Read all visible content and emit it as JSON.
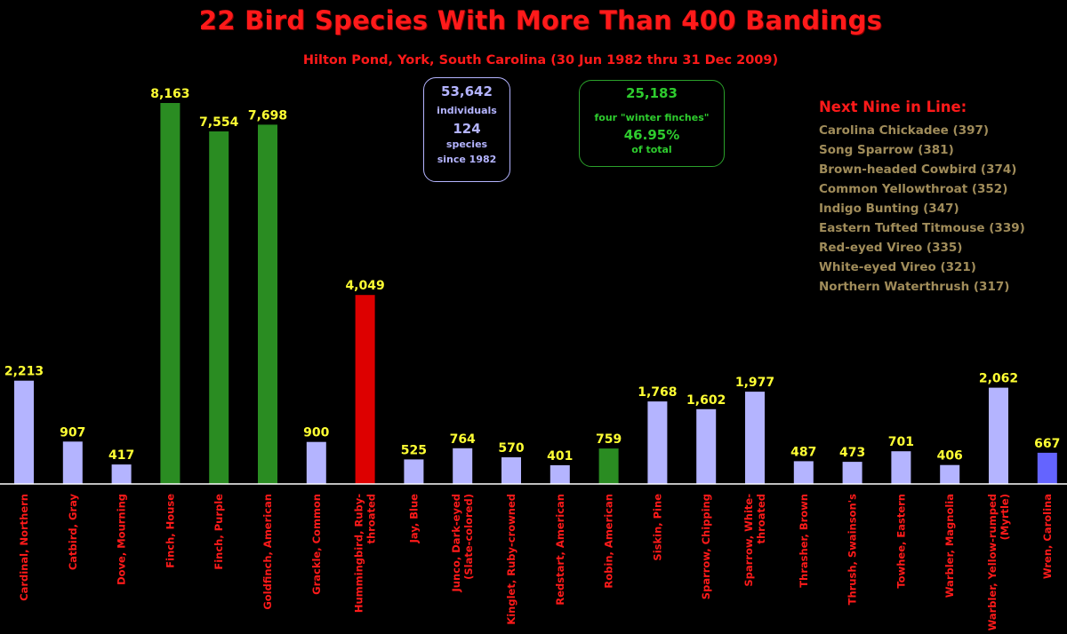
{
  "chart_data": {
    "type": "bar",
    "title": "22 Bird Species With More Than 400 Bandings",
    "subtitle": "Hilton Pond, York, South Carolina (30 Jun 1982 thru 31 Dec 2009)",
    "xlabel": "",
    "ylabel": "",
    "ylim": [
      0,
      8400
    ],
    "grid": false,
    "legend": "none",
    "categories": [
      "Cardinal, Northern",
      "Catbird, Gray",
      "Dove, Mourning",
      "Finch, House",
      "Finch, Purple",
      "Goldfinch, American",
      "Grackle, Common",
      "Hummingbird, Ruby-throated",
      "Jay, Blue",
      "Junco, Dark-eyed (Slate-colored)",
      "Kinglet, Ruby-crowned",
      "Redstart, American",
      "Robin, American",
      "Siskin, Pine",
      "Sparrow, Chipping",
      "Sparrow, White-throated",
      "Thrasher, Brown",
      "Thrush, Swainson's",
      "Towhee, Eastern",
      "Warbler, Magnolia",
      "Warbler, Yellow-rumped (Myrtle)",
      "Wren, Carolina"
    ],
    "tick_labels": [
      [
        "Cardinal, Northern"
      ],
      [
        "Catbird, Gray"
      ],
      [
        "Dove, Mourning"
      ],
      [
        "Finch, House"
      ],
      [
        "Finch, Purple"
      ],
      [
        "Goldfinch, American"
      ],
      [
        "Grackle, Common"
      ],
      [
        "Hummingbird, Ruby-",
        "throated"
      ],
      [
        "Jay, Blue"
      ],
      [
        "Junco, Dark-eyed",
        "(Slate-colored)"
      ],
      [
        "Kinglet, Ruby-crowned"
      ],
      [
        "Redstart, American"
      ],
      [
        "Robin, American"
      ],
      [
        "Siskin, Pine"
      ],
      [
        "Sparrow, Chipping"
      ],
      [
        "Sparrow, White-",
        "throated"
      ],
      [
        "Thrasher, Brown"
      ],
      [
        "Thrush, Swainson's"
      ],
      [
        "Towhee, Eastern"
      ],
      [
        "Warbler, Magnolia"
      ],
      [
        "Warbler, Yellow-rumped",
        "(Myrtle)"
      ],
      [
        "Wren, Carolina"
      ]
    ],
    "values": [
      2213,
      907,
      417,
      8163,
      7554,
      7698,
      900,
      4049,
      525,
      764,
      570,
      401,
      759,
      1768,
      1602,
      1977,
      487,
      473,
      701,
      406,
      2062,
      667
    ],
    "value_labels": [
      "2,213",
      "907",
      "417",
      "8,163",
      "7,554",
      "7,698",
      "900",
      "4,049",
      "525",
      "764",
      "570",
      "401",
      "759",
      "1,768",
      "1,602",
      "1,977",
      "487",
      "473",
      "701",
      "406",
      "2,062",
      "667"
    ],
    "bar_colors": [
      "#b4b4ff",
      "#b4b4ff",
      "#b4b4ff",
      "#2a8c22",
      "#2a8c22",
      "#2a8c22",
      "#b4b4ff",
      "#dd0000",
      "#b4b4ff",
      "#b4b4ff",
      "#b4b4ff",
      "#b4b4ff",
      "#2a8c22",
      "#b4b4ff",
      "#b4b4ff",
      "#b4b4ff",
      "#b4b4ff",
      "#b4b4ff",
      "#b4b4ff",
      "#b4b4ff",
      "#b4b4ff",
      "#6464ff"
    ],
    "annotations": {
      "totals": {
        "individuals_count": "53,642",
        "individuals_label": "individuals",
        "species_count": "124",
        "species_label": "species",
        "since_label": "since 1982"
      },
      "winter_finches": {
        "count": "25,183",
        "label": "four \"winter finches\"",
        "percent": "46.95%",
        "percent_label": "of total"
      },
      "next_nine": {
        "title": "Next Nine in Line:",
        "items": [
          "Carolina Chickadee (397)",
          "Song Sparrow (381)",
          "Brown-headed Cowbird (374)",
          "Common Yellowthroat (352)",
          "Indigo Bunting (347)",
          "Eastern Tufted Titmouse (339)",
          "Red-eyed Vireo (335)",
          "White-eyed Vireo (321)",
          "Northern Waterthrush (317)"
        ]
      }
    }
  },
  "colors": {
    "background": "#000000",
    "title": "#ff1a1a",
    "value_label": "#ffff33",
    "axis": "#ffffff",
    "tick_label": "#ff1a1a",
    "next_nine_item": "#a08c5a",
    "totals_box": "#b4b4ff",
    "finches_box": "#2ecc2e"
  }
}
